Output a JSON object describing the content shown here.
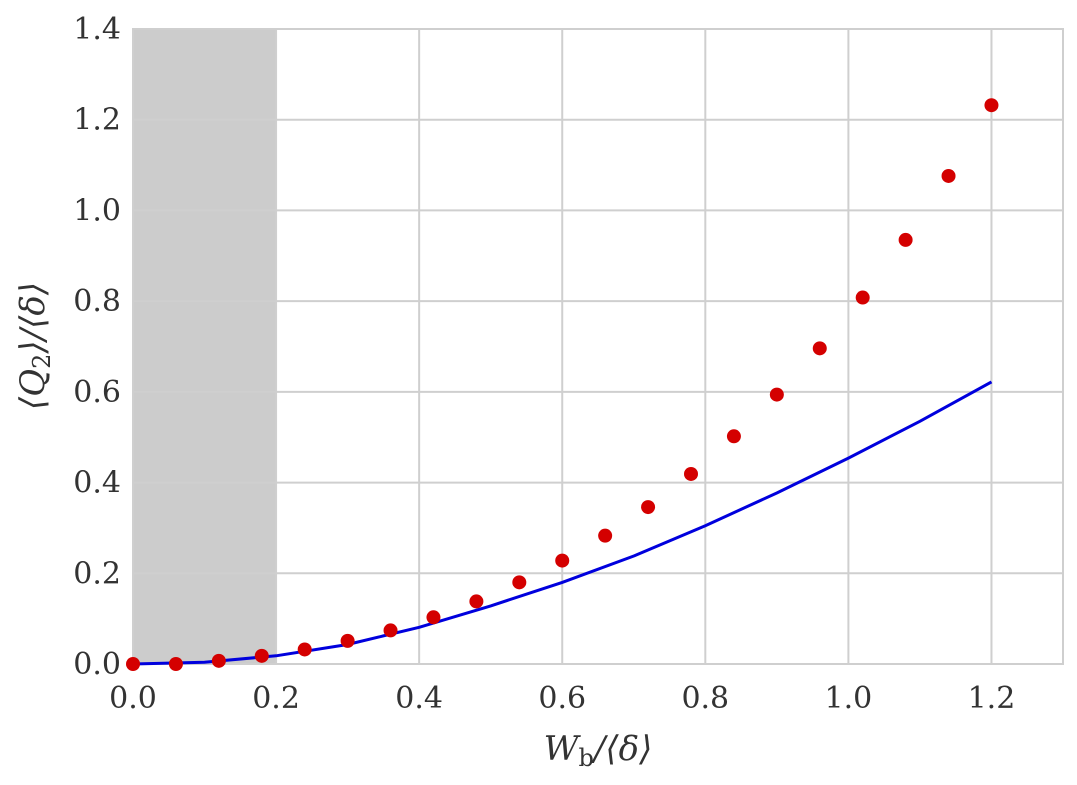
{
  "chart_data": {
    "type": "scatter",
    "xlabel": "W_b/⟨δ⟩",
    "ylabel": "⟨Q_2⟩/⟨δ⟩",
    "xlim": [
      0.0,
      1.3
    ],
    "ylim": [
      0.0,
      1.4
    ],
    "x_ticks": [
      "0.0",
      "0.2",
      "0.4",
      "0.6",
      "0.8",
      "1.0",
      "1.2"
    ],
    "y_ticks": [
      "0.0",
      "0.2",
      "0.4",
      "0.6",
      "0.8",
      "1.0",
      "1.2",
      "1.4"
    ],
    "grid": true,
    "shaded_region": {
      "x": [
        0.0,
        0.2
      ],
      "color": "#cccccc"
    },
    "series": [
      {
        "kind": "points",
        "color": "#d40000",
        "x": [
          0.0,
          0.06,
          0.12,
          0.18,
          0.24,
          0.3,
          0.36,
          0.42,
          0.48,
          0.54,
          0.6,
          0.66,
          0.72,
          0.78,
          0.84,
          0.9,
          0.96,
          1.02,
          1.08,
          1.14,
          1.2
        ],
        "y": [
          0.0,
          0.0,
          0.007,
          0.018,
          0.032,
          0.051,
          0.074,
          0.103,
          0.138,
          0.18,
          0.228,
          0.283,
          0.346,
          0.419,
          0.502,
          0.594,
          0.696,
          0.808,
          0.935,
          1.076,
          1.232
        ]
      },
      {
        "kind": "line",
        "color": "#0000dd",
        "x": [
          0.0,
          0.1,
          0.2,
          0.3,
          0.4,
          0.5,
          0.6,
          0.7,
          0.8,
          0.9,
          1.0,
          1.1,
          1.2
        ],
        "y": [
          0.0,
          0.004,
          0.018,
          0.043,
          0.081,
          0.128,
          0.18,
          0.238,
          0.305,
          0.377,
          0.454,
          0.535,
          0.622
        ]
      }
    ]
  }
}
